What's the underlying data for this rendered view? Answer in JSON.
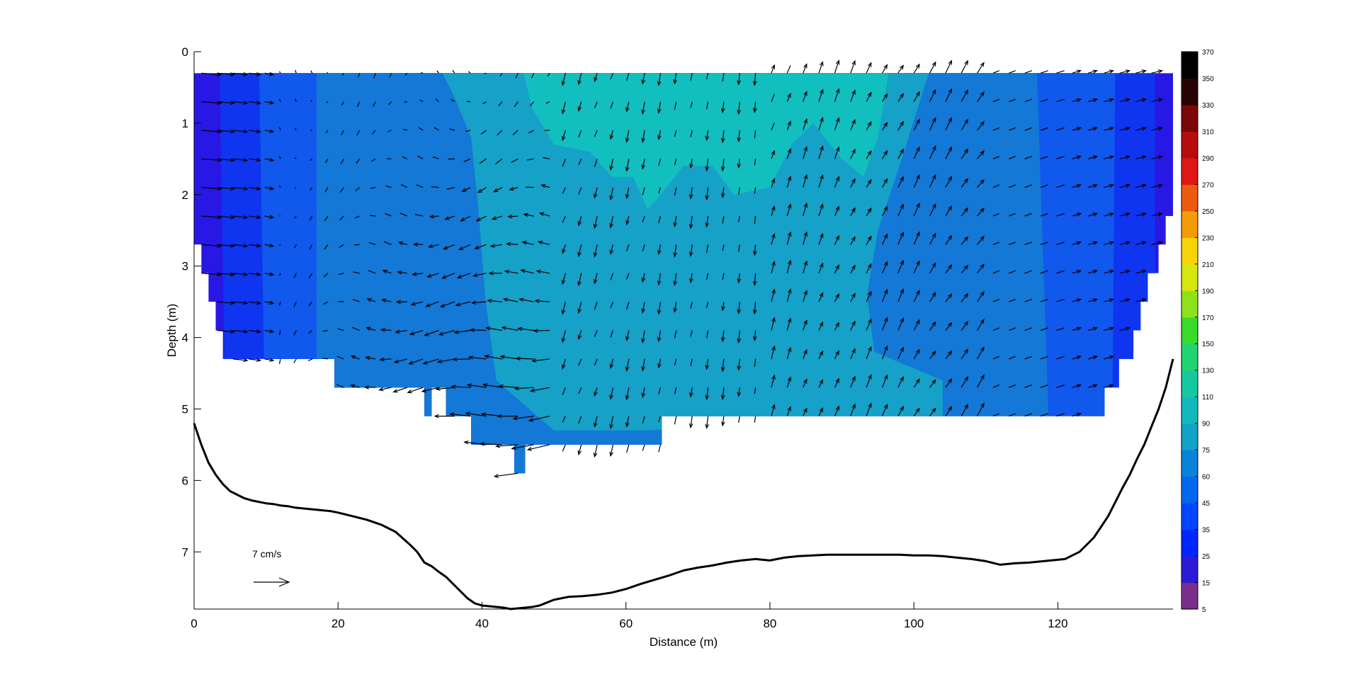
{
  "chart_data": {
    "type": "heatmap",
    "title": "",
    "xlabel": "Distance (m)",
    "ylabel": "Depth (m)",
    "xlim": [
      0,
      136
    ],
    "ylim": [
      0,
      7.8
    ],
    "y_reversed": true,
    "x_ticks": [
      0,
      20,
      40,
      60,
      80,
      100,
      120
    ],
    "y_ticks": [
      0,
      1,
      2,
      3,
      4,
      5,
      6,
      7
    ],
    "colorbar": {
      "ticks": [
        5,
        15,
        25,
        35,
        45,
        60,
        75,
        90,
        110,
        130,
        150,
        170,
        190,
        210,
        230,
        250,
        270,
        290,
        310,
        330,
        350,
        370
      ],
      "colors": [
        "#7b2d8e",
        "#2b1bd6",
        "#0026ff",
        "#0047ff",
        "#0068ee",
        "#0a82d9",
        "#11a2c7",
        "#11b9be",
        "#16c8a0",
        "#22d470",
        "#39da2a",
        "#8ee21a",
        "#d6e60f",
        "#f7d307",
        "#f49b0a",
        "#ec5a10",
        "#e01515",
        "#b50d0d",
        "#7c0707",
        "#2a0202",
        "#000000"
      ]
    },
    "contour_levels": [
      {
        "name": "45",
        "color": "#2718e6"
      },
      {
        "name": "60",
        "color": "#0f35f0"
      },
      {
        "name": "75",
        "color": "#1158ec"
      },
      {
        "name": "90",
        "color": "#1478d6"
      },
      {
        "name": "110",
        "color": "#16a1c9"
      },
      {
        "name": "130",
        "color": "#12bfbf"
      }
    ],
    "bed_profile": {
      "x": [
        0,
        1,
        2,
        3,
        4,
        5,
        6,
        7,
        8,
        9,
        10,
        11,
        12,
        13,
        14,
        15,
        16,
        17,
        18,
        19,
        20,
        22,
        24,
        26,
        28,
        30,
        31,
        32,
        33,
        34,
        35,
        36,
        37,
        38,
        39,
        40,
        41,
        42,
        43,
        44,
        45,
        46,
        47,
        48,
        50,
        52,
        54,
        56,
        58,
        60,
        62,
        64,
        66,
        68,
        70,
        72,
        74,
        76,
        78,
        80,
        82,
        84,
        86,
        88,
        90,
        92,
        94,
        96,
        98,
        100,
        102,
        104,
        106,
        108,
        110,
        112,
        114,
        116,
        118,
        120,
        121,
        122,
        123,
        124,
        125,
        126,
        127,
        128,
        129,
        130,
        131,
        132,
        133,
        134,
        135,
        136
      ],
      "y": [
        5.2,
        5.5,
        5.75,
        5.92,
        6.05,
        6.15,
        6.2,
        6.25,
        6.28,
        6.3,
        6.32,
        6.33,
        6.35,
        6.36,
        6.38,
        6.39,
        6.4,
        6.41,
        6.42,
        6.43,
        6.45,
        6.5,
        6.55,
        6.62,
        6.72,
        6.9,
        7.0,
        7.15,
        7.2,
        7.28,
        7.35,
        7.45,
        7.55,
        7.65,
        7.72,
        7.75,
        7.76,
        7.77,
        7.78,
        7.8,
        7.79,
        7.78,
        7.77,
        7.75,
        7.67,
        7.63,
        7.62,
        7.6,
        7.57,
        7.52,
        7.45,
        7.39,
        7.33,
        7.26,
        7.22,
        7.19,
        7.15,
        7.12,
        7.1,
        7.12,
        7.08,
        7.06,
        7.05,
        7.04,
        7.04,
        7.04,
        7.04,
        7.04,
        7.04,
        7.05,
        7.05,
        7.06,
        7.08,
        7.1,
        7.13,
        7.18,
        7.16,
        7.15,
        7.13,
        7.11,
        7.1,
        7.05,
        7.0,
        6.9,
        6.8,
        6.65,
        6.5,
        6.3,
        6.1,
        5.92,
        5.7,
        5.5,
        5.25,
        5.0,
        4.7,
        4.3
      ]
    },
    "scale_arrow": {
      "label": "7 cm/s",
      "speed": 7
    }
  }
}
